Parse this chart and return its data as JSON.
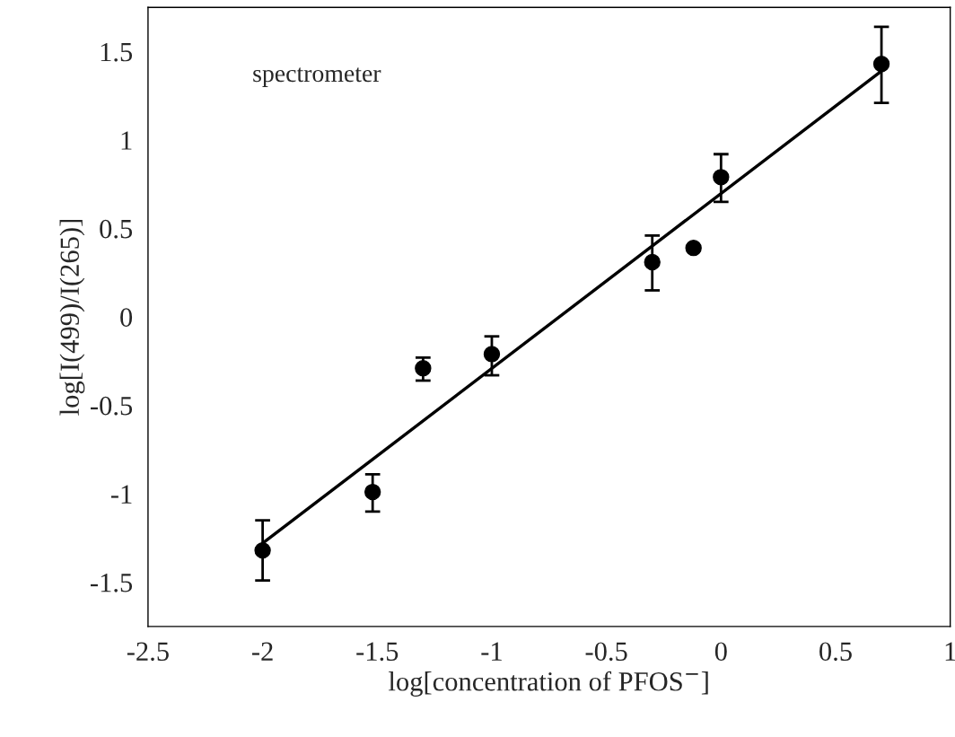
{
  "chart_data": {
    "type": "scatter",
    "xlabel": "log[concentration of PFOS$^{−}$]",
    "ylabel": "log[I(499)/I(265)]",
    "annotations": [
      "spectrometer"
    ],
    "xlim": [
      -2.5,
      1
    ],
    "xticks": [
      -2.5,
      -2,
      -1.5,
      -1,
      -0.5,
      0,
      0.5,
      1
    ],
    "ylim": [
      -1.75,
      1.75
    ],
    "yticks": [
      -1.5,
      -1,
      -0.5,
      0,
      0.5,
      1,
      1.5
    ],
    "grid": false,
    "legend": false,
    "series": [
      {
        "color": "#000000",
        "marker": "circle",
        "x": [
          -2,
          -1.52,
          -1.3,
          -1.0,
          -0.3,
          -0.12,
          0.0,
          0.7
        ],
        "values": [
          -1.32,
          -0.99,
          -0.29,
          -0.21,
          0.31,
          0.39,
          0.79,
          1.43
        ],
        "errors": [
          [
            -1.49,
            -1.15
          ],
          [
            -1.1,
            -0.89
          ],
          [
            -0.36,
            -0.23
          ],
          [
            -0.33,
            -0.11
          ],
          [
            0.15,
            0.46
          ],
          null,
          [
            0.65,
            0.92
          ],
          [
            1.21,
            1.64
          ]
        ]
      },
      {
        "type": "line",
        "color": "#000000",
        "marker": "none",
        "line_style": "solid",
        "x": [
          -2,
          0.7
        ],
        "values": [
          -1.28,
          1.39
        ]
      }
    ]
  }
}
